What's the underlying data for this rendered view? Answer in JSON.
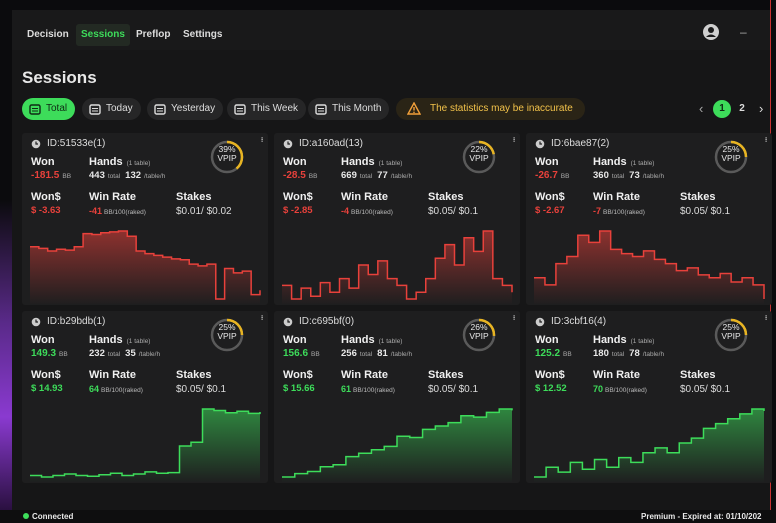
{
  "nav": {
    "tabs": [
      "Decision",
      "Sessions",
      "Preflop",
      "Settings"
    ],
    "active": 1,
    "minimize": "–"
  },
  "header": {
    "title": "Sessions"
  },
  "filters": {
    "options": [
      "Total",
      "Today",
      "Yesterday",
      "This Week",
      "This Month"
    ],
    "active": 0,
    "warning": "The statistics may be inaccurate"
  },
  "pagination": {
    "prev": "‹",
    "pages": [
      1,
      2
    ],
    "current": 0,
    "next": "›"
  },
  "card_labels": {
    "won": "Won",
    "bb": "BB",
    "hands": "Hands",
    "tables": "(1 table)",
    "total": "total",
    "per_hour": "/table/h",
    "won_dollars": "Won$",
    "win_rate": "Win Rate",
    "win_rate_unit": "BB/100(raked)",
    "stakes": "Stakes",
    "vpip": "VPIP"
  },
  "sessions": [
    {
      "id": "ID:51533e(1)",
      "vpip": {
        "value": 39,
        "label": "39%"
      },
      "won": -181.5,
      "hands": 443,
      "hands_per_hour": 132,
      "won_dollars": "$ -3.63",
      "win_rate": -41,
      "stakes": "$0.01/ $0.02",
      "profit": [
        0,
        -2,
        -5,
        -3,
        -4,
        0,
        15,
        14,
        16,
        17,
        18,
        12,
        -5,
        -8,
        -10,
        -12,
        -14,
        -15,
        -20,
        -22,
        -20,
        -60,
        -25,
        -30,
        -28,
        -55,
        -50
      ]
    },
    {
      "id": "ID:a160ad(13)",
      "vpip": {
        "value": 22,
        "label": "22%"
      },
      "won": -28.5,
      "hands": 669,
      "hands_per_hour": 77,
      "won_dollars": "$ -2.85",
      "win_rate": -4,
      "stakes": "$0.05/ $0.1",
      "profit": [
        -10,
        -20,
        -12,
        -18,
        -8,
        -15,
        -5,
        -12,
        5,
        -2,
        8,
        -5,
        -10,
        -20,
        -15,
        -5,
        10,
        20,
        5,
        25,
        15,
        30,
        -5,
        -10,
        -15
      ]
    },
    {
      "id": "ID:6bae87(2)",
      "vpip": {
        "value": 25,
        "label": "25%"
      },
      "won": -26.7,
      "hands": 360,
      "hands_per_hour": 73,
      "won_dollars": "$ -2.67",
      "win_rate": -7,
      "stakes": "$0.05/ $0.1",
      "profit": [
        -5,
        -10,
        5,
        10,
        25,
        20,
        28,
        15,
        12,
        10,
        14,
        8,
        5,
        0,
        2,
        -3,
        -5,
        -2,
        -8,
        -5,
        -10,
        -20
      ]
    },
    {
      "id": "ID:b29bdb(1)",
      "vpip": {
        "value": 25,
        "label": "25%"
      },
      "won": 149.3,
      "hands": 232,
      "hands_per_hour": 35,
      "won_dollars": "$ 14.93",
      "win_rate": 64,
      "stakes": "$0.05/ $0.1",
      "profit": [
        0,
        -2,
        0,
        2,
        0,
        -1,
        1,
        3,
        0,
        2,
        5,
        3,
        4,
        40,
        45,
        90,
        88,
        85,
        87,
        84,
        86
      ]
    },
    {
      "id": "ID:c695bf(0)",
      "vpip": {
        "value": 26,
        "label": "26%"
      },
      "won": 156.6,
      "hands": 256,
      "hands_per_hour": 81,
      "won_dollars": "$ 15.66",
      "win_rate": 61,
      "stakes": "$0.05/ $0.1",
      "profit": [
        0,
        5,
        8,
        15,
        18,
        30,
        35,
        40,
        45,
        60,
        58,
        70,
        75,
        80,
        90,
        88,
        95,
        100,
        98
      ]
    },
    {
      "id": "ID:3cbf16(4)",
      "vpip": {
        "value": 25,
        "label": "25%"
      },
      "won": 125.2,
      "hands": 180,
      "hands_per_hour": 78,
      "won_dollars": "$ 12.52",
      "win_rate": 70,
      "stakes": "$0.05/ $0.1",
      "profit": [
        20,
        30,
        25,
        35,
        28,
        38,
        30,
        40,
        35,
        45,
        50,
        45,
        55,
        60,
        70,
        75,
        80,
        85,
        90,
        88
      ]
    }
  ],
  "footer": {
    "status": "Connected",
    "license": "Premium - Expired at: 01/10/202"
  }
}
